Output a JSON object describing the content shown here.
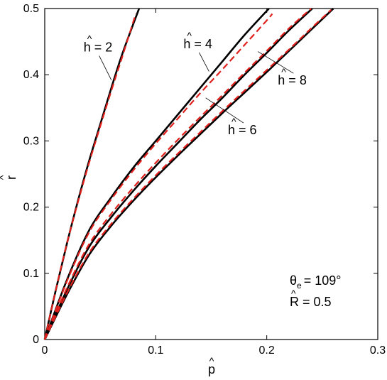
{
  "chart_data": {
    "type": "line",
    "xlabel": "p",
    "ylabel": "r",
    "xlim": [
      0,
      0.3
    ],
    "ylim": [
      0,
      0.5
    ],
    "x_ticks": [
      "0",
      "0.1",
      "0.2",
      "0.3"
    ],
    "y_ticks": [
      "0",
      "0.1",
      "0.2",
      "0.3",
      "0.4",
      "0.5"
    ],
    "grid": false,
    "series": [
      {
        "label": "h = 2",
        "style": "solid",
        "color": "#000000",
        "x": [
          0,
          0.01,
          0.02,
          0.03,
          0.04,
          0.05,
          0.06,
          0.07,
          0.085
        ],
        "y": [
          0,
          0.075,
          0.145,
          0.21,
          0.27,
          0.325,
          0.38,
          0.432,
          0.5
        ]
      },
      {
        "label": "h = 2",
        "style": "dashed",
        "color": "#e0201c",
        "x": [
          0,
          0.01,
          0.02,
          0.03,
          0.04,
          0.05,
          0.06,
          0.07,
          0.082
        ],
        "y": [
          0,
          0.075,
          0.145,
          0.208,
          0.267,
          0.322,
          0.376,
          0.428,
          0.492
        ]
      },
      {
        "label": "h = 4",
        "style": "solid",
        "color": "#000000",
        "x": [
          0,
          0.02,
          0.04,
          0.06,
          0.08,
          0.1,
          0.12,
          0.14,
          0.16,
          0.18,
          0.202
        ],
        "y": [
          0,
          0.09,
          0.165,
          0.215,
          0.26,
          0.3,
          0.34,
          0.38,
          0.42,
          0.46,
          0.5
        ]
      },
      {
        "label": "h = 4",
        "style": "dashed",
        "color": "#e0201c",
        "x": [
          0,
          0.02,
          0.04,
          0.06,
          0.08,
          0.1,
          0.12,
          0.14,
          0.16,
          0.18,
          0.2,
          0.205
        ],
        "y": [
          0,
          0.088,
          0.162,
          0.212,
          0.256,
          0.296,
          0.334,
          0.372,
          0.408,
          0.445,
          0.482,
          0.492
        ]
      },
      {
        "label": "h = 6",
        "style": "solid",
        "color": "#000000",
        "x": [
          0,
          0.02,
          0.04,
          0.06,
          0.08,
          0.1,
          0.12,
          0.14,
          0.16,
          0.18,
          0.2,
          0.22,
          0.241
        ],
        "y": [
          0,
          0.075,
          0.14,
          0.185,
          0.225,
          0.262,
          0.297,
          0.332,
          0.365,
          0.4,
          0.433,
          0.467,
          0.5
        ]
      },
      {
        "label": "h = 6",
        "style": "dashed",
        "color": "#e0201c",
        "x": [
          0,
          0.02,
          0.04,
          0.06,
          0.08,
          0.1,
          0.12,
          0.14,
          0.16,
          0.18,
          0.2,
          0.22,
          0.24
        ],
        "y": [
          0,
          0.078,
          0.144,
          0.19,
          0.23,
          0.267,
          0.302,
          0.336,
          0.369,
          0.403,
          0.436,
          0.47,
          0.5
        ]
      },
      {
        "label": "h = 8",
        "style": "solid",
        "color": "#000000",
        "x": [
          0,
          0.02,
          0.04,
          0.06,
          0.08,
          0.1,
          0.12,
          0.14,
          0.16,
          0.18,
          0.2,
          0.22,
          0.24,
          0.26
        ],
        "y": [
          0,
          0.068,
          0.128,
          0.172,
          0.21,
          0.245,
          0.278,
          0.31,
          0.342,
          0.373,
          0.404,
          0.436,
          0.468,
          0.5
        ]
      },
      {
        "label": "h = 8",
        "style": "dashed",
        "color": "#e0201c",
        "x": [
          0,
          0.02,
          0.04,
          0.06,
          0.08,
          0.1,
          0.12,
          0.14,
          0.16,
          0.18,
          0.2,
          0.22,
          0.24,
          0.258
        ],
        "y": [
          0,
          0.07,
          0.131,
          0.175,
          0.213,
          0.248,
          0.281,
          0.313,
          0.345,
          0.376,
          0.407,
          0.438,
          0.47,
          0.498
        ]
      }
    ],
    "curve_labels": [
      {
        "text": "h = 2",
        "at": [
          0.035,
          0.435
        ],
        "pointer_to": [
          0.06,
          0.392
        ]
      },
      {
        "text": "h = 4",
        "at": [
          0.125,
          0.44
        ],
        "pointer_to": [
          0.148,
          0.405
        ]
      },
      {
        "text": "h = 6",
        "at": [
          0.165,
          0.31
        ],
        "pointer_to": [
          0.145,
          0.365
        ]
      },
      {
        "text": "h = 8",
        "at": [
          0.21,
          0.385
        ],
        "pointer_to": [
          0.192,
          0.435
        ]
      }
    ],
    "annotations": {
      "theta_symbol": "θ",
      "theta_subscript": "e",
      "theta_value": "= 109°",
      "R_line": "R = 0.5"
    }
  }
}
